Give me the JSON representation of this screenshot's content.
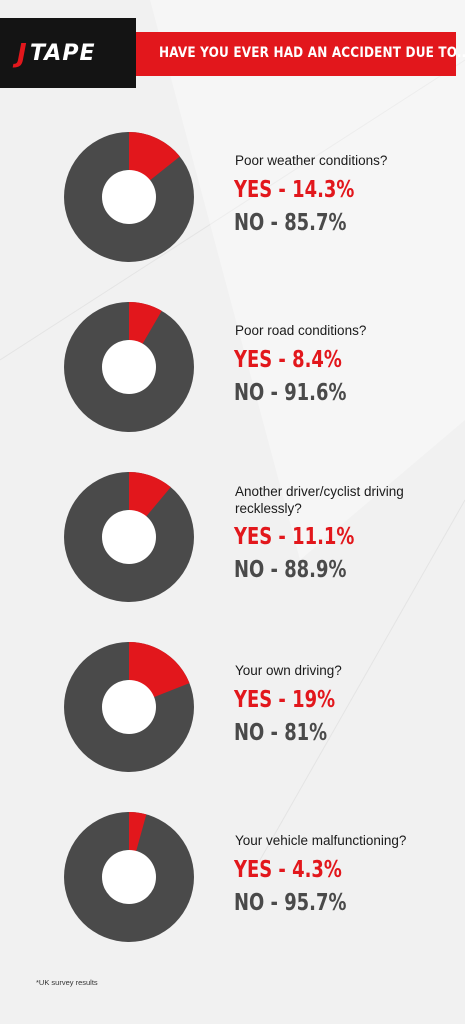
{
  "brand": {
    "name": "TAPE",
    "accent": "#e2171c",
    "dark": "#141414"
  },
  "header": {
    "title": "HAVE YOU EVER HAD AN ACCIDENT DUE TO..."
  },
  "colors": {
    "yes": "#e2171c",
    "no": "#4a4a4a"
  },
  "chart_data": {
    "type": "pie",
    "charts": [
      {
        "question": "Poor weather conditions?",
        "yes_label": "YES - 14.3%",
        "no_label": "NO - 85.7%",
        "values": {
          "yes": 14.3,
          "no": 85.7
        }
      },
      {
        "question": "Poor road conditions?",
        "yes_label": "YES - 8.4%",
        "no_label": "NO - 91.6%",
        "values": {
          "yes": 8.4,
          "no": 91.6
        }
      },
      {
        "question": "Another driver/cyclist driving recklessly?",
        "yes_label": "YES - 11.1%",
        "no_label": "NO - 88.9%",
        "values": {
          "yes": 11.1,
          "no": 88.9
        }
      },
      {
        "question": "Your own driving?",
        "yes_label": "YES - 19%",
        "no_label": "NO - 81%",
        "values": {
          "yes": 19,
          "no": 81
        }
      },
      {
        "question": "Your vehicle malfunctioning?",
        "yes_label": "YES - 4.3%",
        "no_label": "NO - 95.7%",
        "values": {
          "yes": 4.3,
          "no": 95.7
        }
      }
    ]
  },
  "footnote": "*UK survey results"
}
